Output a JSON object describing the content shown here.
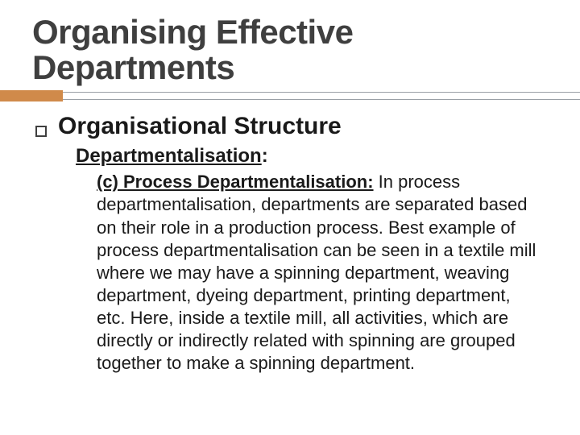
{
  "title": "Organising Effective Departments",
  "divider": {
    "accent_color": "#d08a4a",
    "line_color": "#9aa0a6"
  },
  "heading1": "Organisational Structure",
  "heading2_prefix": "Departmentalisation",
  "heading2_suffix": ":",
  "body_lead": "(c) Process Departmentalisation:",
  "body_rest": " In process departmentalisation, departments are separated based on their role in a production process. Best example of process departmentalisation can be seen in a textile mill where we may have a spinning department, weaving department, dyeing department, printing department, etc. Here, inside a textile mill, all activities, which are directly or indirectly related with spinning are grouped together to make a spinning department."
}
